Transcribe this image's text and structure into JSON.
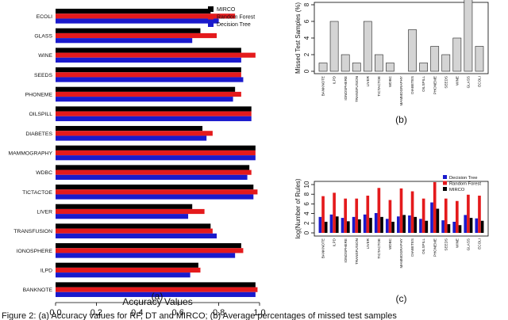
{
  "chart_data": [
    {
      "type": "bar",
      "orientation": "horizontal",
      "panel_label": "(a)",
      "xlabel": "Accuracy Values",
      "ylabel": "",
      "xlim": [
        0,
        1.0
      ],
      "xticks": [
        "0.0",
        "0.2",
        "0.4",
        "0.6",
        "0.8",
        "1.0"
      ],
      "legend_position": "top-right",
      "categories": [
        "ECOLI",
        "GLASS",
        "WINE",
        "SEEDS",
        "PHONEME",
        "OILSPILL",
        "DIABETES",
        "MAMMOGRAPHY",
        "WDBC",
        "TICTACTOE",
        "LIVER",
        "TRANSFUSION",
        "IONOSPHERE",
        "ILPD",
        "BANKNOTE"
      ],
      "series": [
        {
          "name": "MIRCO",
          "color": "#000000",
          "values": [
            0.76,
            0.71,
            0.91,
            0.91,
            0.88,
            0.96,
            0.72,
            0.98,
            0.95,
            0.97,
            0.67,
            0.76,
            0.91,
            0.7,
            0.98
          ]
        },
        {
          "name": "Random Forest",
          "color": "#e41a1c",
          "values": [
            0.88,
            0.79,
            0.98,
            0.91,
            0.91,
            0.96,
            0.77,
            0.98,
            0.96,
            0.99,
            0.73,
            0.77,
            0.92,
            0.71,
            0.99
          ]
        },
        {
          "name": "Decision Tree",
          "color": "#1a1acc",
          "values": [
            0.8,
            0.67,
            0.91,
            0.92,
            0.87,
            0.96,
            0.74,
            0.98,
            0.94,
            0.97,
            0.65,
            0.79,
            0.88,
            0.66,
            0.98
          ]
        }
      ]
    },
    {
      "type": "bar",
      "panel_label": "(b)",
      "ylabel": "Missed Test Samples (%)",
      "ylim": [
        0,
        8
      ],
      "yticks": [
        "0",
        "2",
        "4",
        "6",
        "8"
      ],
      "categories": [
        "BANKNOTE",
        "ILPD",
        "IONOSPHERE",
        "TRANSFUSION",
        "LIVER",
        "TICTACTOE",
        "WDBC",
        "MAMMOGRAPHY",
        "DIABETES",
        "OILSPILL",
        "PHONEME",
        "SEEDS",
        "WINE",
        "GLASS",
        "ECOLI"
      ],
      "values": [
        1,
        6,
        2,
        1,
        6,
        2,
        1,
        0,
        5,
        1,
        3,
        2,
        4,
        9,
        3
      ]
    },
    {
      "type": "bar",
      "panel_label": "(c)",
      "ylabel": "log(Number of Rules)",
      "ylim": [
        0,
        10
      ],
      "yticks": [
        "0",
        "2",
        "4",
        "6",
        "8",
        "10"
      ],
      "legend_position": "top-right",
      "categories": [
        "BANKNOTE",
        "ILPD",
        "IONOSPHERE",
        "TRANSFUSION",
        "LIVER",
        "TICTACTOE",
        "WDBC",
        "MAMMOGRAPHY",
        "DIABETES",
        "OILSPILL",
        "PHONEME",
        "SEEDS",
        "WINE",
        "GLASS",
        "ECOLI"
      ],
      "series": [
        {
          "name": "Decision Tree",
          "color": "#1a1acc",
          "values": [
            3.3,
            3.8,
            3.1,
            3.3,
            3.8,
            4.1,
            2.9,
            3.4,
            3.6,
            2.9,
            6.3,
            2.6,
            2.3,
            3.7,
            3.0
          ]
        },
        {
          "name": "Random Forest",
          "color": "#e41a1c",
          "values": [
            7.6,
            8.3,
            7.1,
            7.1,
            7.7,
            9.3,
            6.8,
            9.2,
            8.6,
            7.1,
            10.5,
            7.1,
            6.6,
            7.9,
            7.7
          ]
        },
        {
          "name": "MIRCO",
          "color": "#000000",
          "values": [
            2.3,
            3.4,
            2.4,
            2.8,
            3.1,
            3.3,
            2.3,
            3.7,
            3.3,
            2.5,
            5.0,
            1.8,
            1.6,
            3.1,
            2.5
          ]
        }
      ]
    }
  ],
  "caption_fragment": "Figure 2: (a) Accuracy values for RF, DT and MIRCO; (b) Average percentages of missed test samples"
}
